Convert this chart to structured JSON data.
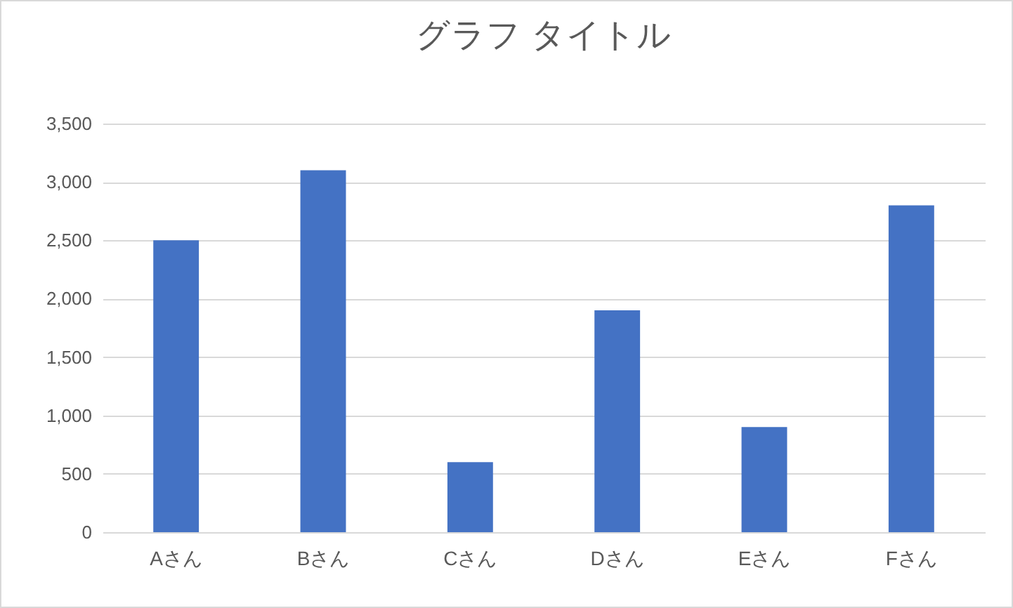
{
  "chart_data": {
    "type": "bar",
    "title": "グラフ タイトル",
    "categories": [
      "Aさん",
      "Bさん",
      "Cさん",
      "Dさん",
      "Eさん",
      "Fさん"
    ],
    "values": [
      2500,
      3100,
      600,
      1900,
      900,
      2800
    ],
    "color": "#4472c4",
    "ylim": [
      0,
      3500
    ],
    "yticks": [
      0,
      500,
      {
        "value": 1000,
        "label": "1,000"
      },
      {
        "value": 1500,
        "label": "1,500"
      },
      {
        "value": 2000,
        "label": "2,000"
      },
      {
        "value": 2500,
        "label": "2,500"
      },
      {
        "value": 3000,
        "label": "3,000"
      },
      {
        "value": 3500,
        "label": "3,500"
      }
    ],
    "grid": "y"
  }
}
